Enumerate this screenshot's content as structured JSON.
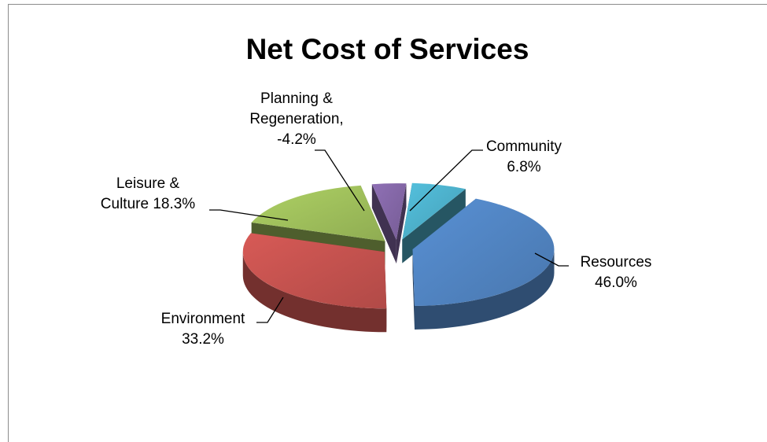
{
  "chart_data": {
    "type": "pie",
    "title": "Net Cost of Services",
    "slices": [
      {
        "name": "Community",
        "value": 6.8,
        "label_lines": [
          "Community",
          "6.8%"
        ],
        "color": "#4BACC6"
      },
      {
        "name": "Resources",
        "value": 46.0,
        "label_lines": [
          "Resources",
          "46.0%"
        ],
        "color": "#4F81BD"
      },
      {
        "name": "Environment",
        "value": 33.2,
        "label_lines": [
          "Environment",
          "33.2%"
        ],
        "color": "#C0504D"
      },
      {
        "name": "Leisure & Culture",
        "value": 18.3,
        "label_lines": [
          "Leisure &",
          "Culture 18.3%"
        ],
        "color": "#9BBB59"
      },
      {
        "name": "Planning & Regeneration",
        "value": -4.2,
        "label_lines": [
          "Planning &",
          "Regeneration,",
          "-4.2%"
        ],
        "color": "#8064A2"
      }
    ],
    "legend": "none",
    "style": "3d-exploded"
  }
}
